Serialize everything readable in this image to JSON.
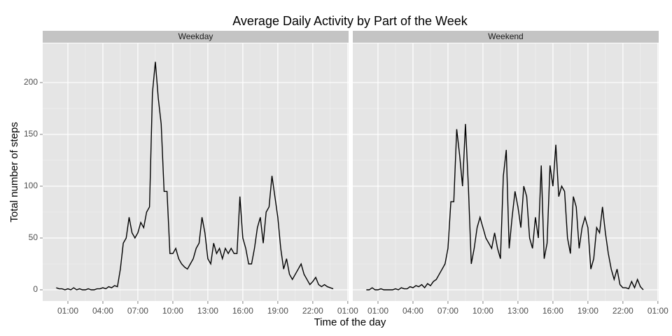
{
  "chart_data": {
    "type": "line",
    "title": "Average Daily Activity by Part of the Week",
    "x_label": "Time of the day",
    "y_label": "Total number of steps",
    "x": [
      0,
      0.25,
      0.5,
      0.75,
      1,
      1.25,
      1.5,
      1.75,
      2,
      2.25,
      2.5,
      2.75,
      3,
      3.25,
      3.5,
      3.75,
      4,
      4.25,
      4.5,
      4.75,
      5,
      5.25,
      5.5,
      5.75,
      6,
      6.25,
      6.5,
      6.75,
      7,
      7.25,
      7.5,
      7.75,
      8,
      8.25,
      8.5,
      8.75,
      9,
      9.25,
      9.5,
      9.75,
      10,
      10.25,
      10.5,
      10.75,
      11,
      11.25,
      11.5,
      11.75,
      12,
      12.25,
      12.5,
      12.75,
      13,
      13.25,
      13.5,
      13.75,
      14,
      14.25,
      14.5,
      14.75,
      15,
      15.25,
      15.5,
      15.75,
      16,
      16.25,
      16.5,
      16.75,
      17,
      17.25,
      17.5,
      17.75,
      18,
      18.25,
      18.5,
      18.75,
      19,
      19.25,
      19.5,
      19.75,
      20,
      20.25,
      20.5,
      20.75,
      21,
      21.25,
      21.5,
      21.75,
      22,
      22.25,
      22.5,
      22.75,
      23,
      23.25,
      23.5,
      23.75
    ],
    "panels": [
      {
        "name": "Weekday",
        "color": "#000000",
        "values": [
          2,
          1,
          1,
          0,
          1,
          0,
          2,
          0,
          1,
          0,
          0,
          1,
          0,
          0,
          1,
          1,
          2,
          1,
          3,
          2,
          4,
          3,
          20,
          45,
          50,
          70,
          55,
          50,
          55,
          65,
          60,
          75,
          80,
          190,
          220,
          185,
          160,
          95,
          95,
          35,
          35,
          40,
          30,
          25,
          22,
          20,
          25,
          30,
          40,
          45,
          70,
          55,
          30,
          25,
          45,
          35,
          40,
          30,
          40,
          35,
          40,
          35,
          35,
          90,
          50,
          40,
          25,
          25,
          40,
          60,
          70,
          45,
          75,
          80,
          110,
          90,
          70,
          40,
          20,
          30,
          15,
          10,
          15,
          20,
          25,
          15,
          10,
          5,
          8,
          12,
          5,
          3,
          5,
          3,
          2,
          1
        ]
      },
      {
        "name": "Weekend",
        "color": "#000000",
        "values": [
          0,
          0,
          2,
          0,
          0,
          1,
          0,
          0,
          0,
          0,
          1,
          0,
          2,
          1,
          1,
          3,
          2,
          4,
          3,
          5,
          2,
          6,
          4,
          8,
          10,
          15,
          20,
          25,
          40,
          85,
          85,
          155,
          130,
          100,
          160,
          100,
          25,
          40,
          60,
          70,
          60,
          50,
          45,
          40,
          55,
          40,
          30,
          110,
          135,
          40,
          70,
          95,
          80,
          60,
          100,
          90,
          50,
          40,
          70,
          50,
          120,
          30,
          45,
          120,
          100,
          140,
          90,
          100,
          95,
          50,
          35,
          90,
          80,
          40,
          60,
          70,
          60,
          20,
          30,
          60,
          55,
          80,
          55,
          35,
          20,
          10,
          20,
          5,
          2,
          2,
          1,
          8,
          2,
          10,
          3,
          0
        ]
      }
    ],
    "xlim": [
      -1.16,
      25.07
    ],
    "xticks": [
      {
        "value": 1,
        "label": "01:00"
      },
      {
        "value": 4,
        "label": "04:00"
      },
      {
        "value": 7,
        "label": "07:00"
      },
      {
        "value": 10,
        "label": "10:00"
      },
      {
        "value": 13,
        "label": "13:00"
      },
      {
        "value": 16,
        "label": "16:00"
      },
      {
        "value": 19,
        "label": "19:00"
      },
      {
        "value": 22,
        "label": "22:00"
      },
      {
        "value": 25,
        "label": "01:00"
      }
    ],
    "ylim": [
      -10.8,
      237.8
    ],
    "yticks": [
      0,
      50,
      100,
      150,
      200
    ],
    "grid": true
  }
}
